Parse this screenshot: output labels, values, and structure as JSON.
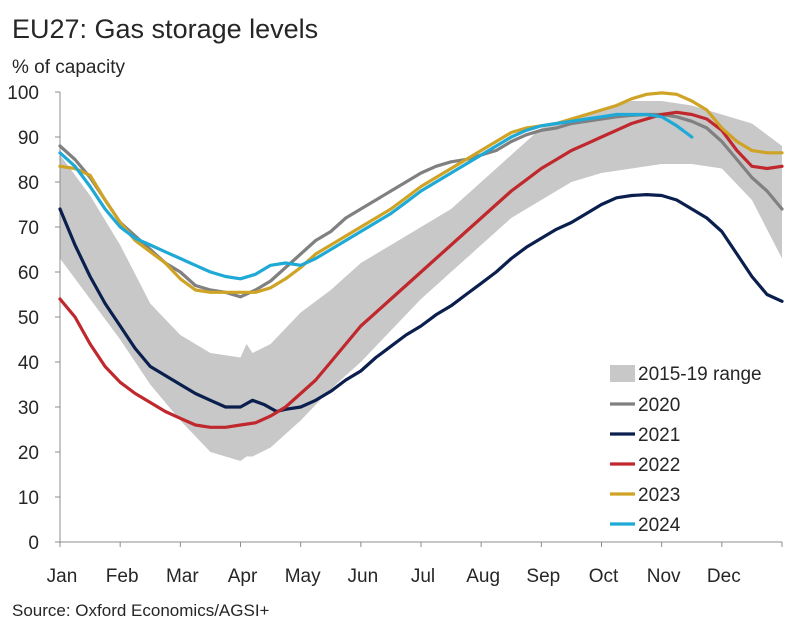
{
  "chart_data": {
    "type": "line",
    "title": "EU27: Gas storage levels",
    "ylabel": "% of capacity",
    "xlabel": "",
    "source": "Source: Oxford Economics/AGSI+",
    "ylim": [
      0,
      100
    ],
    "xlim": [
      0,
      12
    ],
    "yticks": [
      0,
      10,
      20,
      30,
      40,
      50,
      60,
      70,
      80,
      90,
      100
    ],
    "xtick_labels": [
      "Jan",
      "Feb",
      "Mar",
      "Apr",
      "May",
      "Jun",
      "Jul",
      "Aug",
      "Sep",
      "Oct",
      "Nov",
      "Dec"
    ],
    "grid": false,
    "legend_position": "bottom-right",
    "range_band": {
      "name": "2015-19 range",
      "color": "#c8c8c8",
      "x": [
        0,
        0.5,
        1,
        1.5,
        2,
        2.5,
        3,
        3.1,
        3.2,
        3.5,
        4,
        4.5,
        5,
        5.5,
        6,
        6.5,
        7,
        7.5,
        8,
        8.5,
        9,
        9.5,
        10,
        10.5,
        11,
        11.5,
        12
      ],
      "lower": [
        63,
        54,
        45,
        35,
        27,
        20,
        18,
        19,
        19,
        21,
        27,
        34,
        40,
        47,
        54,
        60,
        66,
        72,
        76,
        80,
        82,
        83,
        84,
        84,
        83,
        76,
        63
      ],
      "upper": [
        86,
        77,
        66,
        53,
        46,
        42,
        41,
        44,
        42,
        44,
        51,
        56,
        62,
        66,
        70,
        74,
        80,
        86,
        92,
        94,
        96,
        98,
        98,
        97,
        95,
        93,
        88
      ]
    },
    "series": [
      {
        "name": "2020",
        "color": "#808080",
        "x": [
          0,
          0.25,
          0.5,
          0.75,
          1,
          1.25,
          1.5,
          1.75,
          2,
          2.25,
          2.5,
          2.75,
          3,
          3.25,
          3.5,
          3.75,
          4,
          4.25,
          4.5,
          4.75,
          5,
          5.25,
          5.5,
          5.75,
          6,
          6.25,
          6.5,
          6.75,
          7,
          7.25,
          7.5,
          7.75,
          8,
          8.25,
          8.5,
          8.75,
          9,
          9.25,
          9.5,
          9.75,
          10,
          10.25,
          10.5,
          10.75,
          11,
          11.25,
          11.5,
          11.75,
          12
        ],
        "y": [
          88,
          85,
          81,
          76,
          71,
          68,
          65,
          62,
          60,
          57,
          56,
          55.5,
          54.5,
          56,
          58,
          61,
          64,
          67,
          69,
          72,
          74,
          76,
          78,
          80,
          82,
          83.5,
          84.5,
          85,
          86,
          87,
          89,
          90.5,
          91.5,
          92,
          93,
          93.5,
          94,
          94.5,
          94.8,
          95,
          95,
          94.5,
          93.5,
          92,
          89,
          85,
          81,
          78,
          74
        ]
      },
      {
        "name": "2021",
        "color": "#0b1f4e",
        "x": [
          0,
          0.25,
          0.5,
          0.75,
          1,
          1.25,
          1.5,
          1.75,
          2,
          2.25,
          2.5,
          2.75,
          3,
          3.2,
          3.4,
          3.6,
          3.75,
          4,
          4.25,
          4.5,
          4.75,
          5,
          5.25,
          5.5,
          5.75,
          6,
          6.25,
          6.5,
          6.75,
          7,
          7.25,
          7.5,
          7.75,
          8,
          8.25,
          8.5,
          8.75,
          9,
          9.25,
          9.5,
          9.75,
          10,
          10.25,
          10.5,
          10.75,
          11,
          11.25,
          11.5,
          11.75,
          12
        ],
        "y": [
          74,
          66,
          59,
          53,
          48,
          43,
          39,
          37,
          35,
          33,
          31.5,
          30,
          30,
          31.5,
          30.5,
          29,
          29.5,
          30,
          31.5,
          33.5,
          36,
          38,
          41,
          43.5,
          46,
          48,
          50.5,
          52.5,
          55,
          57.5,
          60,
          63,
          65.5,
          67.5,
          69.5,
          71,
          73,
          75,
          76.5,
          77,
          77.2,
          77,
          76,
          74,
          72,
          69,
          64,
          59,
          55,
          53.5
        ]
      },
      {
        "name": "2022",
        "color": "#c0282d",
        "x": [
          0,
          0.25,
          0.5,
          0.75,
          1,
          1.25,
          1.5,
          1.75,
          2,
          2.25,
          2.5,
          2.75,
          3,
          3.25,
          3.5,
          3.75,
          4,
          4.25,
          4.5,
          4.75,
          5,
          5.25,
          5.5,
          5.75,
          6,
          6.25,
          6.5,
          6.75,
          7,
          7.25,
          7.5,
          7.75,
          8,
          8.25,
          8.5,
          8.75,
          9,
          9.25,
          9.5,
          9.75,
          10,
          10.25,
          10.5,
          10.75,
          11,
          11.25,
          11.5,
          11.75,
          12
        ],
        "y": [
          54,
          50,
          44,
          39,
          35.5,
          33,
          31,
          29,
          27.5,
          26,
          25.5,
          25.5,
          26,
          26.5,
          28,
          30,
          33,
          36,
          40,
          44,
          48,
          51,
          54,
          57,
          60,
          63,
          66,
          69,
          72,
          75,
          78,
          80.5,
          83,
          85,
          87,
          88.5,
          90,
          91.5,
          93,
          94,
          95,
          95.5,
          95,
          94,
          91.5,
          87,
          83.5,
          83,
          83.5
        ]
      },
      {
        "name": "2023",
        "color": "#cfa325",
        "x": [
          0,
          0.25,
          0.5,
          0.75,
          1,
          1.25,
          1.5,
          1.75,
          2,
          2.25,
          2.5,
          2.75,
          3,
          3.25,
          3.5,
          3.75,
          4,
          4.25,
          4.5,
          4.75,
          5,
          5.25,
          5.5,
          5.75,
          6,
          6.25,
          6.5,
          6.75,
          7,
          7.25,
          7.5,
          7.75,
          8,
          8.25,
          8.5,
          8.75,
          9,
          9.25,
          9.5,
          9.75,
          10,
          10.25,
          10.5,
          10.75,
          11,
          11.25,
          11.5,
          11.75,
          12
        ],
        "y": [
          83.5,
          83,
          81.5,
          76,
          71,
          67,
          64.5,
          62,
          58.5,
          56,
          55.5,
          55.5,
          55.5,
          55.5,
          56.5,
          58.5,
          61,
          64,
          66,
          68,
          70,
          72,
          74,
          76.5,
          79,
          81,
          83,
          85,
          87,
          89,
          91,
          92,
          92.5,
          93,
          94,
          95,
          96,
          97,
          98.5,
          99.5,
          99.8,
          99.5,
          98,
          96,
          92,
          89,
          87,
          86.5,
          86.5
        ]
      },
      {
        "name": "2024",
        "color": "#1fa9d6",
        "x": [
          0,
          0.25,
          0.5,
          0.75,
          1,
          1.25,
          1.5,
          1.75,
          2,
          2.25,
          2.5,
          2.75,
          3,
          3.25,
          3.5,
          3.75,
          4,
          4.25,
          4.5,
          4.75,
          5,
          5.25,
          5.5,
          5.75,
          6,
          6.25,
          6.5,
          6.75,
          7,
          7.25,
          7.5,
          7.75,
          8,
          8.25,
          8.5,
          8.75,
          9,
          9.25,
          9.5,
          9.75,
          10,
          10.25,
          10.5
        ],
        "y": [
          86.5,
          83.5,
          79,
          74,
          70,
          67.5,
          66,
          64.5,
          63,
          61.5,
          60,
          59,
          58.5,
          59.5,
          61.5,
          62,
          61.5,
          63,
          65,
          67,
          69,
          71,
          73,
          75.5,
          78,
          80,
          82,
          84,
          86,
          88,
          90,
          91.5,
          92.5,
          93,
          93.5,
          94,
          94.5,
          95,
          95,
          95,
          94.5,
          92.5,
          90
        ]
      }
    ]
  }
}
